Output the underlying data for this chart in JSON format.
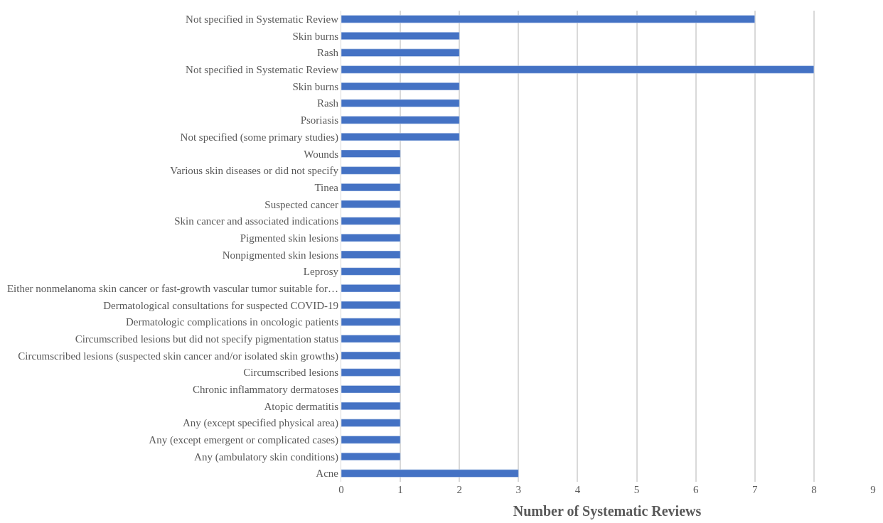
{
  "chart_data": {
    "type": "bar",
    "orientation": "horizontal",
    "xlabel": "Number of Systematic Reviews",
    "categories": [
      "Not specified in Systematic Review",
      "Skin burns",
      "Rash",
      "Not specified in Systematic Review",
      "Skin burns",
      "Rash",
      "Psoriasis",
      "Not specified (some primary studies)",
      "Wounds",
      "Various skin diseases or did not specify",
      "Tinea",
      "Suspected cancer",
      "Skin cancer and associated indications",
      "Pigmented skin lesions",
      "Nonpigmented skin lesions",
      "Leprosy",
      "Either nonmelanoma skin cancer or fast-growth vascular tumor suitable for…",
      "Dermatological consultations for suspected COVID-19",
      "Dermatologic complications in oncologic patients",
      "Circumscribed lesions but did not specify pigmentation status",
      "Circumscribed lesions (suspected skin cancer and/or isolated skin growths)",
      "Circumscribed lesions",
      "Chronic inflammatory dermatoses",
      "Atopic dermatitis",
      "Any (except specified physical area)",
      "Any (except emergent or complicated cases)",
      "Any (ambulatory skin conditions)",
      "Acne"
    ],
    "values": [
      7,
      2,
      2,
      8,
      2,
      2,
      2,
      2,
      1,
      1,
      1,
      1,
      1,
      1,
      1,
      1,
      1,
      1,
      1,
      1,
      1,
      1,
      1,
      1,
      1,
      1,
      1,
      3
    ],
    "color": "#4472c4",
    "xlim": [
      0,
      9
    ],
    "xticks": [
      0,
      1,
      2,
      3,
      4,
      5,
      6,
      7,
      8,
      9
    ],
    "grid": "x"
  }
}
